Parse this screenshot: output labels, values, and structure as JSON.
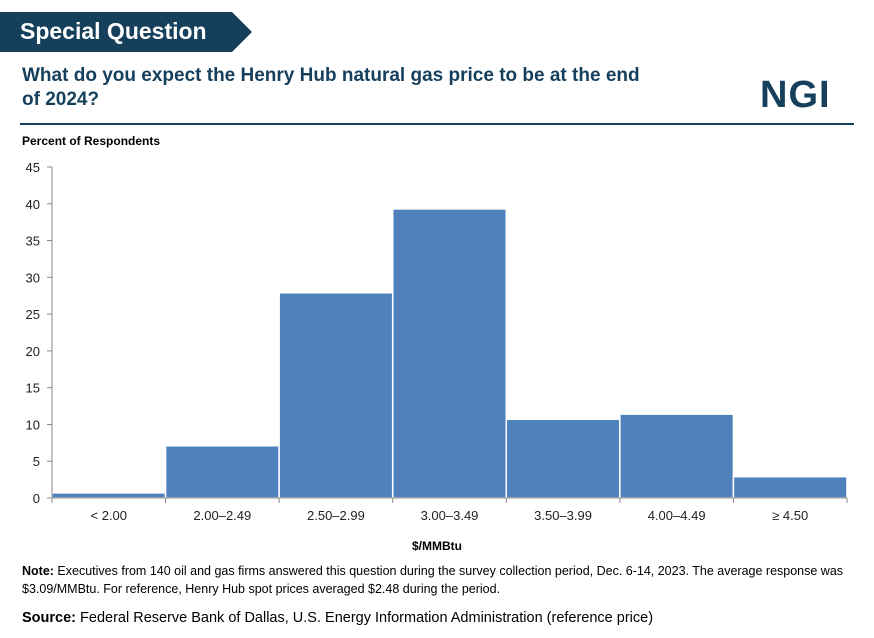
{
  "header": {
    "banner": "Special Question",
    "question": "What do you expect the Henry Hub natural gas price to be at the end of 2024?",
    "logo": "NGI"
  },
  "colors": {
    "navy": "#163f5c",
    "bar": "#4f81bd",
    "bar_edge": "#ffffff"
  },
  "chart_data": {
    "type": "bar",
    "title": "",
    "ylabel": "Percent of Respondents",
    "xlabel": "$/MMBtu",
    "categories": [
      "< 2.00",
      "2.00–2.49",
      "2.50–2.99",
      "3.00–3.49",
      "3.50–3.99",
      "4.00–4.49",
      "≥ 4.50"
    ],
    "values": [
      0.7,
      7.1,
      27.9,
      39.3,
      10.7,
      11.4,
      2.9
    ],
    "ylim": [
      0,
      45
    ],
    "yticks": [
      0,
      5,
      10,
      15,
      20,
      25,
      30,
      35,
      40,
      45
    ],
    "grid": false
  },
  "footer": {
    "note_label": "Note:",
    "note_text": " Executives from 140 oil and gas firms answered this question during the survey collection period, Dec. 6-14, 2023. The average response was $3.09/MMBtu. For reference, Henry Hub spot prices averaged $2.48 during the period.",
    "source_label": "Source:",
    "source_text": " Federal Reserve Bank of Dallas, U.S. Energy Information Administration (reference price)"
  }
}
